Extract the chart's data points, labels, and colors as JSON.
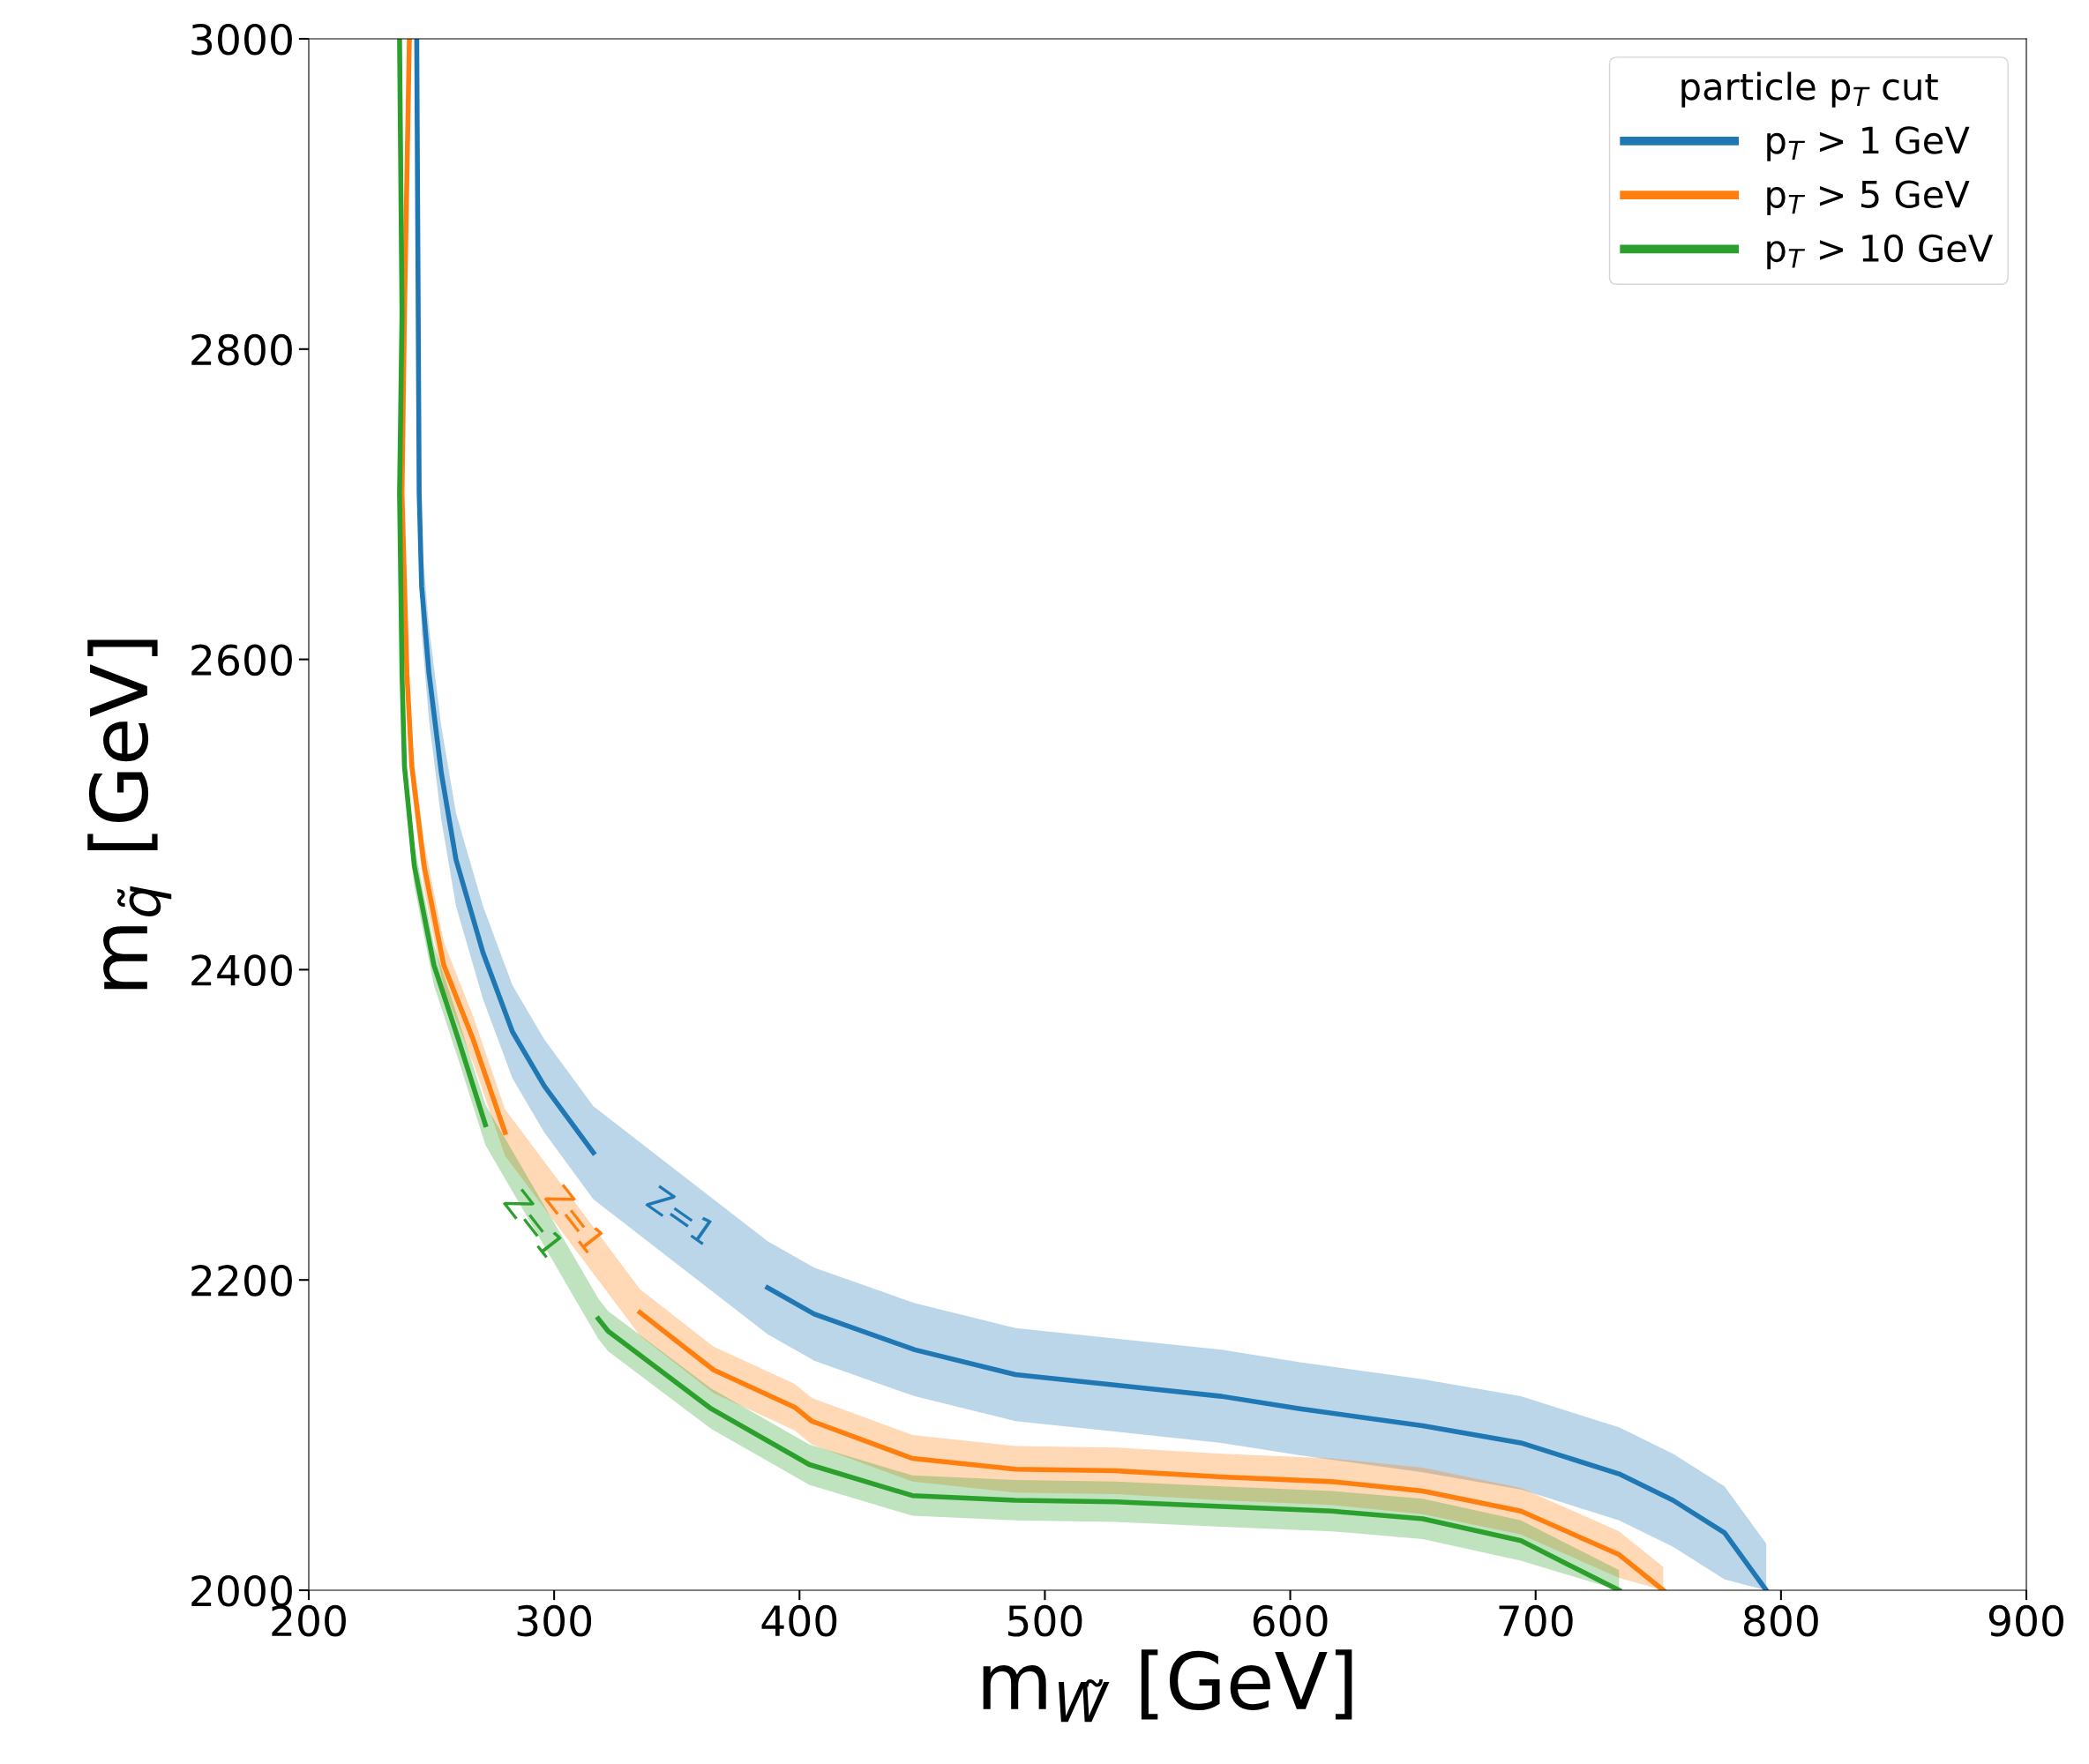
{
  "chart_data": {
    "type": "line",
    "xlabel": "m$_{W̃}$ [GeV]",
    "ylabel": "m$_{q̃}$ [GeV]",
    "legend_title": "particle p$_{T}$ cut",
    "legend": "top right",
    "grid": false,
    "xlim": [
      200,
      900
    ],
    "xticks": [
      200,
      300,
      400,
      500,
      600,
      700,
      800,
      900
    ],
    "ylim": [
      2000,
      3000
    ],
    "yticks": [
      2000,
      2200,
      2400,
      2600,
      2800,
      3000
    ],
    "series": [
      {
        "name": "p$_{T}$ > 1 GeV",
        "color": "#1f77b4",
        "x": [
          244,
          245,
          246,
          249,
          254,
          260,
          271,
          283,
          296,
          316,
          351,
          387,
          406,
          447,
          488,
          530,
          572,
          604,
          654,
          694,
          734,
          756,
          777,
          794
        ],
        "values": [
          3000,
          2707,
          2647,
          2591,
          2527,
          2471,
          2411,
          2360,
          2325,
          2282,
          null,
          2195,
          2178,
          2155,
          2139,
          2132,
          2125,
          2117,
          2106,
          2095,
          2075,
          2058,
          2037,
          2000
        ],
        "lower": [
          2970,
          2677,
          2617,
          2561,
          2497,
          2441,
          2381,
          2330,
          2295,
          2252,
          null,
          2165,
          2148,
          2125,
          2109,
          2102,
          2095,
          2087,
          2076,
          2065,
          2045,
          2028,
          2007,
          2000
        ],
        "upper": [
          3000,
          2737,
          2677,
          2621,
          2557,
          2501,
          2441,
          2390,
          2355,
          2312,
          null,
          2225,
          2208,
          2185,
          2169,
          2162,
          2155,
          2147,
          2136,
          2125,
          2105,
          2088,
          2067,
          2030
        ]
      },
      {
        "name": "p$_{T}$ > 5 GeV",
        "color": "#ff7f0e",
        "x": [
          241,
          239,
          238,
          240,
          242,
          247,
          255,
          267,
          280,
          307,
          335,
          365,
          398,
          405,
          446,
          488,
          529,
          572,
          617,
          654,
          694,
          734,
          752
        ],
        "values": [
          3000,
          2823,
          2707,
          2591,
          2531,
          2467,
          2403,
          2355,
          2295,
          null,
          2179,
          2142,
          2118,
          2109,
          2085,
          2078,
          2077,
          2073,
          2070,
          2064,
          2051,
          2023,
          2000
        ],
        "lower": [
          2985,
          2808,
          2692,
          2576,
          2516,
          2452,
          2388,
          2340,
          2280,
          null,
          2164,
          2127,
          2103,
          2094,
          2070,
          2063,
          2062,
          2058,
          2055,
          2049,
          2036,
          2008,
          2000
        ],
        "upper": [
          3000,
          2838,
          2722,
          2606,
          2546,
          2482,
          2418,
          2370,
          2310,
          null,
          2194,
          2157,
          2133,
          2124,
          2100,
          2093,
          2092,
          2088,
          2085,
          2079,
          2066,
          2038,
          2015
        ]
      },
      {
        "name": "p$_{T}$ > 10 GeV",
        "color": "#2ca02c",
        "x": [
          237,
          238,
          237,
          238,
          239,
          243,
          251,
          261,
          272,
          295,
          318,
          322,
          364,
          404,
          446,
          488,
          529,
          572,
          617,
          654,
          694,
          734
        ],
        "values": [
          3000,
          2823,
          2707,
          2591,
          2531,
          2467,
          2403,
          2355,
          2300,
          null,
          2175,
          2167,
          2117,
          2081,
          2061,
          2058,
          2057,
          2054,
          2051,
          2046,
          2032,
          2000
        ],
        "lower": [
          2987,
          2810,
          2694,
          2578,
          2518,
          2454,
          2390,
          2342,
          2287,
          null,
          2162,
          2154,
          2104,
          2068,
          2048,
          2045,
          2044,
          2041,
          2038,
          2033,
          2019,
          2000
        ],
        "upper": [
          3000,
          2836,
          2720,
          2604,
          2544,
          2480,
          2416,
          2368,
          2313,
          null,
          2188,
          2180,
          2130,
          2094,
          2074,
          2071,
          2070,
          2067,
          2064,
          2059,
          2045,
          2013
        ]
      }
    ],
    "annotations": [
      "Z=1",
      "Z=1",
      "Z=1"
    ]
  }
}
